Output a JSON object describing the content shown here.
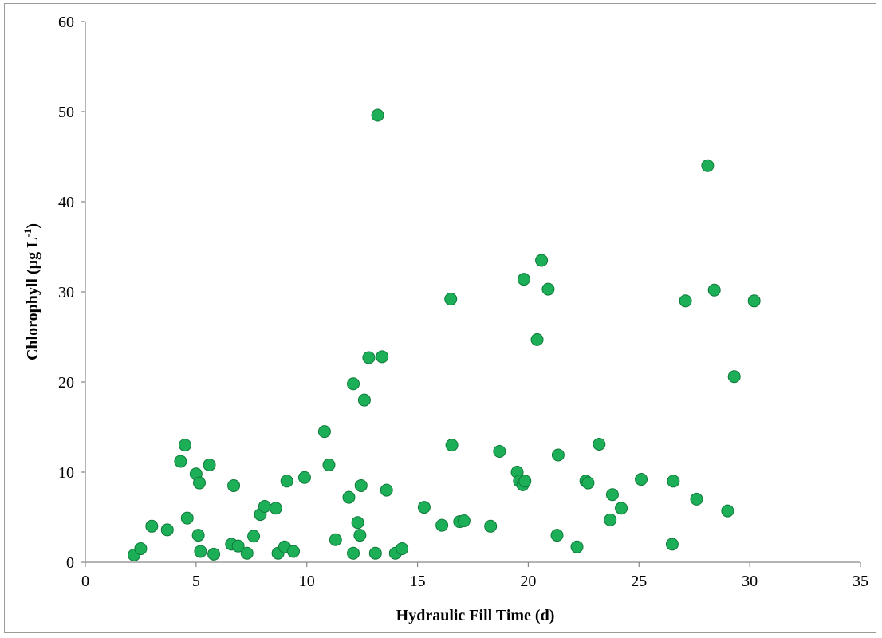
{
  "chart_data": {
    "type": "scatter",
    "title": "",
    "xlabel": "Hydraulic Fill Time (d)",
    "ylabel": {
      "pre": "Chlorophyll (µg L",
      "sup": "-1",
      "post": ")"
    },
    "xlim": [
      0,
      35
    ],
    "ylim": [
      0,
      60
    ],
    "xticks": [
      "0",
      "5",
      "10",
      "15",
      "20",
      "25",
      "30",
      "35"
    ],
    "yticks": [
      "0",
      "10",
      "20",
      "30",
      "40",
      "50",
      "60"
    ],
    "grid": false,
    "legend": "none",
    "marker_color": "#1daf57",
    "marker_edge_color": "#0e7a3a",
    "points": [
      [
        2.2,
        0.8
      ],
      [
        2.5,
        1.5
      ],
      [
        3.0,
        4.0
      ],
      [
        3.7,
        3.6
      ],
      [
        4.3,
        11.2
      ],
      [
        4.5,
        13.0
      ],
      [
        4.6,
        4.9
      ],
      [
        5.0,
        9.8
      ],
      [
        5.1,
        3.0
      ],
      [
        5.15,
        8.8
      ],
      [
        5.2,
        1.2
      ],
      [
        5.6,
        10.8
      ],
      [
        5.8,
        0.9
      ],
      [
        6.6,
        2.0
      ],
      [
        6.7,
        8.5
      ],
      [
        6.9,
        1.8
      ],
      [
        7.3,
        1.0
      ],
      [
        7.6,
        2.9
      ],
      [
        7.9,
        5.3
      ],
      [
        8.1,
        6.2
      ],
      [
        8.6,
        6.0
      ],
      [
        8.7,
        1.0
      ],
      [
        9.0,
        1.7
      ],
      [
        9.1,
        9.0
      ],
      [
        9.4,
        1.2
      ],
      [
        9.9,
        9.4
      ],
      [
        10.8,
        14.5
      ],
      [
        11.0,
        10.8
      ],
      [
        11.3,
        2.5
      ],
      [
        11.9,
        7.2
      ],
      [
        12.1,
        19.8
      ],
      [
        12.1,
        1.0
      ],
      [
        12.3,
        4.4
      ],
      [
        12.4,
        3.0
      ],
      [
        12.45,
        8.5
      ],
      [
        12.6,
        18.0
      ],
      [
        12.8,
        22.7
      ],
      [
        13.1,
        1.0
      ],
      [
        13.2,
        49.6
      ],
      [
        13.4,
        22.8
      ],
      [
        13.6,
        8.0
      ],
      [
        14.0,
        1.0
      ],
      [
        14.3,
        1.5
      ],
      [
        15.3,
        6.1
      ],
      [
        16.1,
        4.1
      ],
      [
        16.5,
        29.2
      ],
      [
        16.55,
        13.0
      ],
      [
        16.9,
        4.5
      ],
      [
        17.1,
        4.6
      ],
      [
        18.3,
        4.0
      ],
      [
        18.7,
        12.3
      ],
      [
        19.5,
        10.0
      ],
      [
        19.6,
        9.0
      ],
      [
        19.75,
        8.6
      ],
      [
        19.8,
        31.4
      ],
      [
        19.85,
        9.0
      ],
      [
        20.4,
        24.7
      ],
      [
        20.6,
        33.5
      ],
      [
        20.9,
        30.3
      ],
      [
        21.3,
        3.0
      ],
      [
        21.35,
        11.9
      ],
      [
        22.2,
        1.7
      ],
      [
        22.6,
        9.0
      ],
      [
        22.7,
        8.8
      ],
      [
        23.2,
        13.1
      ],
      [
        23.7,
        4.7
      ],
      [
        23.8,
        7.5
      ],
      [
        24.2,
        6.0
      ],
      [
        25.1,
        9.2
      ],
      [
        26.5,
        2.0
      ],
      [
        26.55,
        9.0
      ],
      [
        27.1,
        29.0
      ],
      [
        27.6,
        7.0
      ],
      [
        28.1,
        44.0
      ],
      [
        28.4,
        30.2
      ],
      [
        29.0,
        5.7
      ],
      [
        29.3,
        20.6
      ],
      [
        30.2,
        29.0
      ]
    ]
  }
}
